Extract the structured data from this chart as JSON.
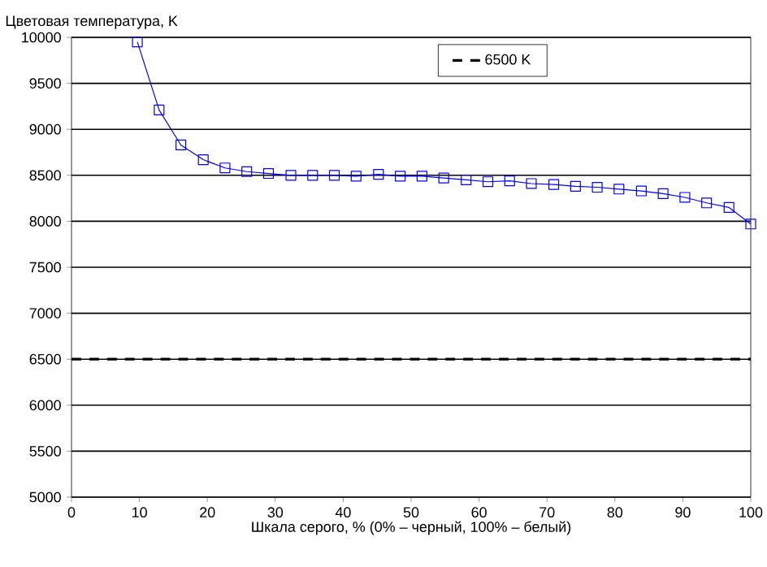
{
  "chart_data": {
    "type": "line",
    "ylabel": "Цветовая температура, K",
    "xlabel": "Шкала серого, % (0% – черный, 100% – белый)",
    "xlim": [
      0,
      100
    ],
    "xticks": [
      0,
      10,
      20,
      30,
      40,
      50,
      60,
      70,
      80,
      90,
      100
    ],
    "ylim": [
      5000,
      10000
    ],
    "yticks": [
      5000,
      5500,
      6000,
      6500,
      7000,
      7500,
      8000,
      8500,
      9000,
      9500,
      10000
    ],
    "grid": "y",
    "legend": "top",
    "marker": "square",
    "line_style": "solid",
    "x": [
      9.7,
      12.9,
      16.1,
      19.4,
      22.6,
      25.8,
      29.0,
      32.3,
      35.5,
      38.7,
      41.9,
      45.2,
      48.4,
      51.6,
      54.8,
      58.1,
      61.3,
      64.5,
      67.7,
      71.0,
      74.2,
      77.4,
      80.6,
      83.9,
      87.1,
      90.3,
      93.5,
      96.8,
      100
    ],
    "series": [
      {
        "color": "#0000ff",
        "values": [
          9950,
          9210,
          8830,
          8670,
          8580,
          8540,
          8520,
          8500,
          8500,
          8500,
          8490,
          8510,
          8490,
          8490,
          8470,
          8450,
          8430,
          8440,
          8410,
          8400,
          8380,
          8370,
          8350,
          8330,
          8300,
          8260,
          8200,
          8150,
          7970
        ]
      }
    ],
    "ref_lines": [
      {
        "axis": "y",
        "value": 6500,
        "label": "6500 K",
        "color": "#000000",
        "line_style": "dashed"
      }
    ]
  }
}
